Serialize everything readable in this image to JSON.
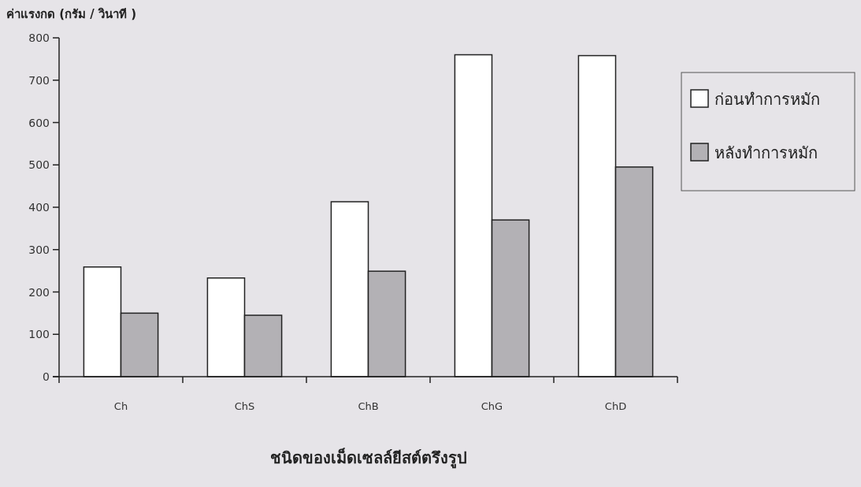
{
  "chart_data": {
    "type": "bar",
    "ylabel": "ค่าแรงกด (กรัม / วินาที )",
    "xlabel": "ชนิดของเม็ดเซลล์ยีสต์ตรึงรูป",
    "categories": [
      "Ch",
      "ChS",
      "ChB",
      "ChG",
      "ChD"
    ],
    "series": [
      {
        "name": "ก่อนทำการหมัก",
        "color": "#ffffff",
        "values": [
          259,
          233,
          413,
          760,
          758
        ]
      },
      {
        "name": "หลังทำการหมัก",
        "color": "#b3b1b5",
        "values": [
          150,
          145,
          249,
          370,
          495
        ]
      }
    ],
    "ylim": [
      0,
      800
    ],
    "yticks": [
      0,
      100,
      200,
      300,
      400,
      500,
      600,
      700,
      800
    ],
    "legend": "right",
    "grid": false
  }
}
